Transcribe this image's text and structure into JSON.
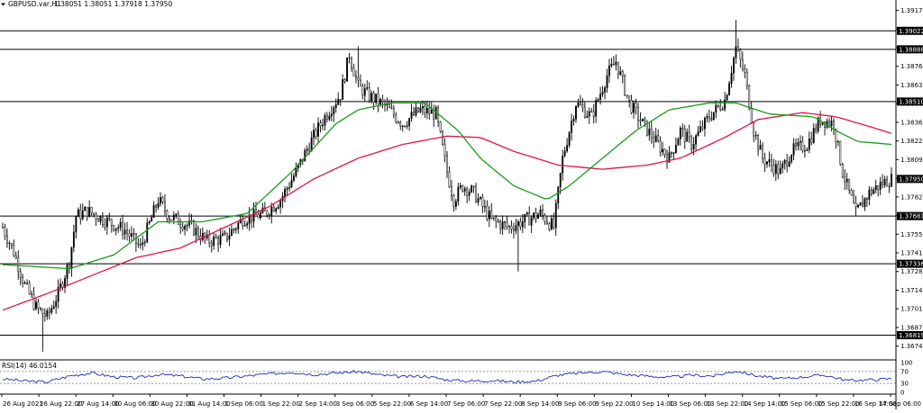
{
  "header": {
    "symbol": "GBPUSD.var,H1",
    "ohlc": "1.38051 1.38051 1.37918 1.37950"
  },
  "chart_data": {
    "type": "candlestick",
    "timeframe": "H1",
    "price_axis_ticks": [
      "1.39170",
      "1.39035",
      "1.38900",
      "1.38765",
      "1.38630",
      "1.38495",
      "1.38360",
      "1.38225",
      "1.38090",
      "1.37955",
      "1.37820",
      "1.37685",
      "1.37550",
      "1.37415",
      "1.37280",
      "1.37145",
      "1.37010",
      "1.36875",
      "1.36740"
    ],
    "price_range": [
      1.3664,
      1.3918
    ],
    "horizontal_lines": [
      "1.39022",
      "1.38888",
      "1.38510",
      "1.37681",
      "1.37336",
      "1.36819"
    ],
    "current_price_label": "1.37950",
    "time_axis_labels": [
      "26 Aug 2021",
      "26 Aug 22:00",
      "27 Aug 14:00",
      "30 Aug 06:00",
      "30 Aug 22:00",
      "31 Aug 14:00",
      "1 Sep 06:00",
      "1 Sep 22:00",
      "2 Sep 14:00",
      "3 Sep 06:00",
      "5 Sep 22:00",
      "6 Sep 14:00",
      "7 Sep 06:00",
      "7 Sep 22:00",
      "8 Sep 14:00",
      "9 Sep 06:00",
      "9 Sep 22:00",
      "10 Sep 14:00",
      "13 Sep 06:00",
      "13 Sep 22:00",
      "14 Sep 14:00",
      "15 Sep 06:00",
      "15 Sep 22:00",
      "16 Sep 14:00",
      "17 Sep 06:00"
    ],
    "anchors": [
      [
        0,
        1.376
      ],
      [
        5,
        1.3742
      ],
      [
        10,
        1.3718
      ],
      [
        15,
        1.3702
      ],
      [
        20,
        1.3695
      ],
      [
        25,
        1.3712
      ],
      [
        30,
        1.3735
      ],
      [
        33,
        1.3768
      ],
      [
        38,
        1.3772
      ],
      [
        45,
        1.3766
      ],
      [
        55,
        1.3758
      ],
      [
        62,
        1.3745
      ],
      [
        70,
        1.378
      ],
      [
        75,
        1.3768
      ],
      [
        85,
        1.376
      ],
      [
        92,
        1.375
      ],
      [
        100,
        1.3752
      ],
      [
        108,
        1.3766
      ],
      [
        118,
        1.377
      ],
      [
        125,
        1.378
      ],
      [
        132,
        1.38
      ],
      [
        138,
        1.382
      ],
      [
        145,
        1.384
      ],
      [
        152,
        1.3856
      ],
      [
        156,
        1.3885
      ],
      [
        160,
        1.3862
      ],
      [
        165,
        1.3855
      ],
      [
        172,
        1.3848
      ],
      [
        180,
        1.3835
      ],
      [
        188,
        1.3845
      ],
      [
        195,
        1.3842
      ],
      [
        200,
        1.38
      ],
      [
        203,
        1.378
      ],
      [
        207,
        1.379
      ],
      [
        212,
        1.3785
      ],
      [
        220,
        1.3765
      ],
      [
        228,
        1.376
      ],
      [
        235,
        1.3765
      ],
      [
        242,
        1.377
      ],
      [
        248,
        1.376
      ],
      [
        252,
        1.381
      ],
      [
        258,
        1.385
      ],
      [
        265,
        1.384
      ],
      [
        272,
        1.387
      ],
      [
        276,
        1.388
      ],
      [
        282,
        1.385
      ],
      [
        288,
        1.3835
      ],
      [
        295,
        1.382
      ],
      [
        300,
        1.381
      ],
      [
        305,
        1.383
      ],
      [
        310,
        1.382
      ],
      [
        318,
        1.384
      ],
      [
        325,
        1.3852
      ],
      [
        330,
        1.389
      ],
      [
        334,
        1.387
      ],
      [
        338,
        1.383
      ],
      [
        342,
        1.381
      ],
      [
        350,
        1.38
      ],
      [
        355,
        1.3815
      ],
      [
        362,
        1.382
      ],
      [
        368,
        1.3838
      ],
      [
        374,
        1.3835
      ],
      [
        378,
        1.38
      ],
      [
        384,
        1.377
      ],
      [
        390,
        1.3785
      ],
      [
        396,
        1.3792
      ],
      [
        400,
        1.3795
      ]
    ],
    "spikes": [
      [
        160,
        1.3891,
        "high"
      ],
      [
        330,
        1.391,
        "high"
      ],
      [
        232,
        1.3728,
        "low"
      ],
      [
        18,
        1.367,
        "low"
      ],
      [
        384,
        1.3768,
        "low"
      ]
    ],
    "ma_fast": {
      "color": "#1a9a1a",
      "points": [
        [
          0,
          1.3733
        ],
        [
          30,
          1.373
        ],
        [
          50,
          1.374
        ],
        [
          70,
          1.3764
        ],
        [
          90,
          1.3764
        ],
        [
          110,
          1.377
        ],
        [
          130,
          1.38
        ],
        [
          150,
          1.3835
        ],
        [
          160,
          1.3845
        ],
        [
          175,
          1.385
        ],
        [
          190,
          1.385
        ],
        [
          205,
          1.383
        ],
        [
          215,
          1.381
        ],
        [
          230,
          1.379
        ],
        [
          245,
          1.378
        ],
        [
          255,
          1.379
        ],
        [
          270,
          1.381
        ],
        [
          285,
          1.383
        ],
        [
          300,
          1.3845
        ],
        [
          318,
          1.385
        ],
        [
          330,
          1.385
        ],
        [
          345,
          1.3842
        ],
        [
          365,
          1.384
        ],
        [
          375,
          1.383
        ],
        [
          385,
          1.3822
        ],
        [
          400,
          1.382
        ]
      ]
    },
    "ma_slow": {
      "color": "#e0134b",
      "points": [
        [
          0,
          1.37
        ],
        [
          20,
          1.3712
        ],
        [
          40,
          1.3725
        ],
        [
          60,
          1.3738
        ],
        [
          80,
          1.3745
        ],
        [
          100,
          1.376
        ],
        [
          120,
          1.3775
        ],
        [
          140,
          1.3795
        ],
        [
          160,
          1.381
        ],
        [
          180,
          1.382
        ],
        [
          200,
          1.3826
        ],
        [
          215,
          1.3825
        ],
        [
          230,
          1.3815
        ],
        [
          250,
          1.3805
        ],
        [
          270,
          1.3802
        ],
        [
          290,
          1.3805
        ],
        [
          305,
          1.381
        ],
        [
          325,
          1.3825
        ],
        [
          340,
          1.3838
        ],
        [
          360,
          1.3843
        ],
        [
          375,
          1.384
        ],
        [
          390,
          1.3833
        ],
        [
          400,
          1.3828
        ]
      ]
    },
    "rsi": {
      "label": "RSI(14) 46.0154",
      "scale_labels": [
        "100",
        "70",
        "30",
        "0"
      ],
      "range": [
        0,
        100
      ],
      "levels": [
        70,
        30
      ],
      "color": "#1c2bb5",
      "points": [
        [
          0,
          45
        ],
        [
          10,
          38
        ],
        [
          20,
          35
        ],
        [
          30,
          55
        ],
        [
          40,
          65
        ],
        [
          50,
          52
        ],
        [
          60,
          48
        ],
        [
          70,
          60
        ],
        [
          80,
          55
        ],
        [
          90,
          45
        ],
        [
          100,
          48
        ],
        [
          110,
          55
        ],
        [
          120,
          62
        ],
        [
          130,
          68
        ],
        [
          140,
          60
        ],
        [
          150,
          65
        ],
        [
          160,
          70
        ],
        [
          170,
          58
        ],
        [
          180,
          52
        ],
        [
          190,
          55
        ],
        [
          200,
          42
        ],
        [
          210,
          38
        ],
        [
          220,
          40
        ],
        [
          230,
          35
        ],
        [
          240,
          38
        ],
        [
          250,
          58
        ],
        [
          260,
          65
        ],
        [
          270,
          70
        ],
        [
          280,
          60
        ],
        [
          290,
          55
        ],
        [
          300,
          50
        ],
        [
          310,
          58
        ],
        [
          320,
          55
        ],
        [
          330,
          72
        ],
        [
          340,
          55
        ],
        [
          350,
          45
        ],
        [
          360,
          52
        ],
        [
          370,
          58
        ],
        [
          380,
          40
        ],
        [
          390,
          42
        ],
        [
          400,
          46
        ]
      ]
    }
  }
}
